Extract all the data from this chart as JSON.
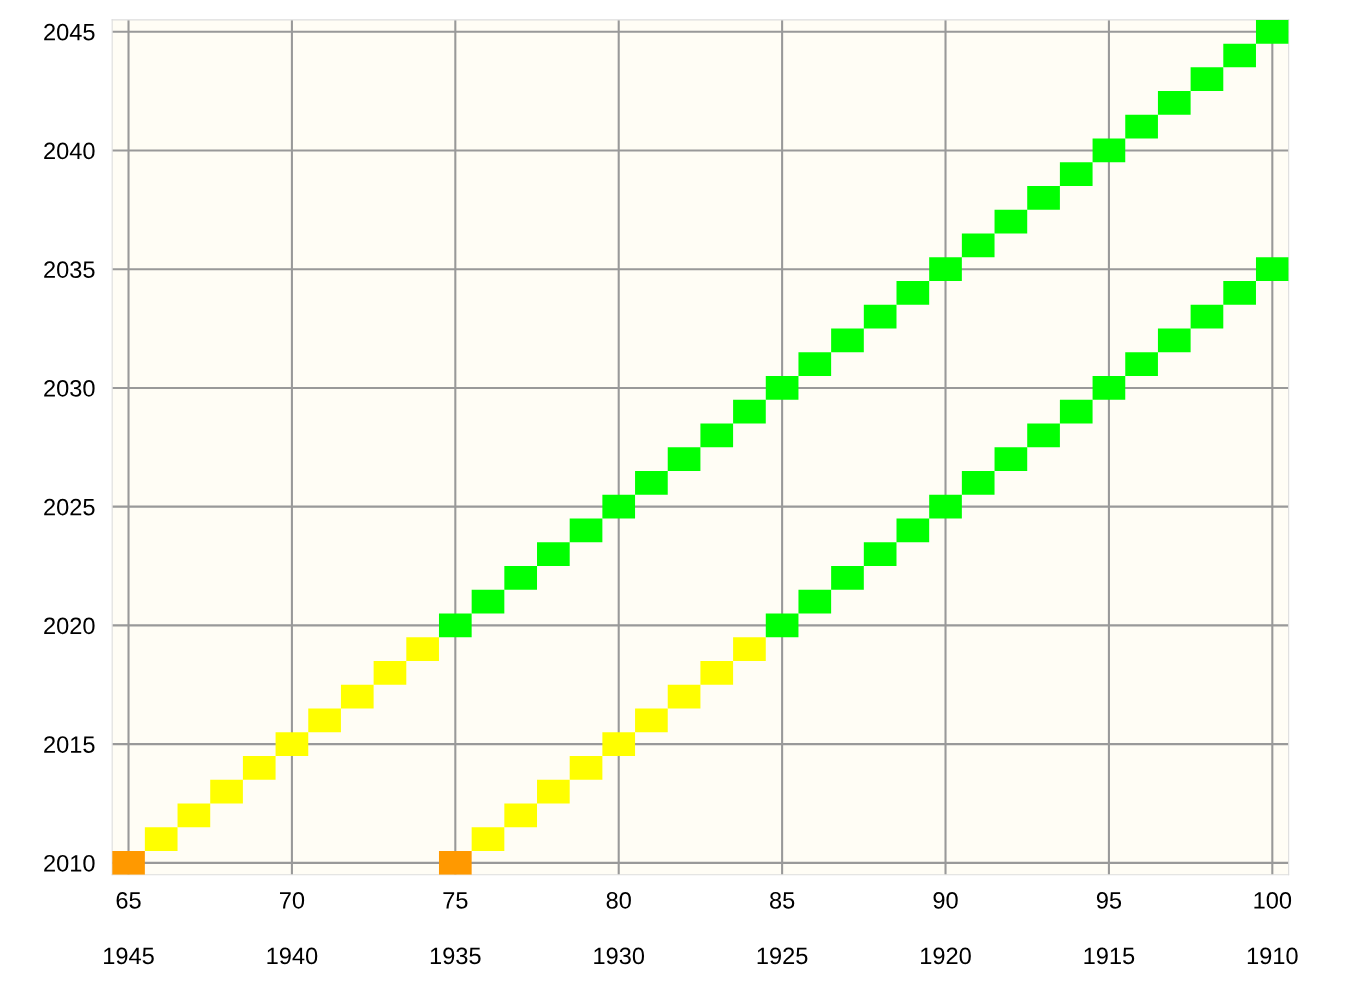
{
  "chart_data": {
    "type": "scatter",
    "grid": true,
    "legend": false,
    "xlim": [
      64.5,
      100.5
    ],
    "xticks": [
      65,
      70,
      75,
      80,
      85,
      90,
      95,
      100
    ],
    "x2lim": [
      1945.5,
      1909.5
    ],
    "x2ticks": [
      1945,
      1940,
      1935,
      1930,
      1925,
      1920,
      1915,
      1910
    ],
    "ylim": [
      2009.5,
      2045.5
    ],
    "yticks": [
      2010,
      2015,
      2020,
      2025,
      2030,
      2035,
      2040,
      2045
    ],
    "series": [
      {
        "color": "#ff9900",
        "x": [
          65,
          75
        ],
        "values": [
          2010,
          2010
        ]
      },
      {
        "color": "#ffff00",
        "x": [
          66,
          67,
          68,
          69,
          70,
          71,
          72,
          73,
          74,
          76,
          77,
          78,
          79,
          80,
          81,
          82,
          83,
          84
        ],
        "values": [
          2011,
          2012,
          2013,
          2014,
          2015,
          2016,
          2017,
          2018,
          2019,
          2011,
          2012,
          2013,
          2014,
          2015,
          2016,
          2017,
          2018,
          2019
        ]
      },
      {
        "color": "#00ff00",
        "x": [
          75,
          76,
          77,
          78,
          79,
          80,
          81,
          82,
          83,
          84,
          85,
          86,
          87,
          88,
          89,
          90,
          91,
          92,
          93,
          94,
          95,
          96,
          97,
          98,
          99,
          100,
          85,
          86,
          87,
          88,
          89,
          90,
          91,
          92,
          93,
          94,
          95,
          96,
          97,
          98,
          99,
          100
        ],
        "values": [
          2020,
          2021,
          2022,
          2023,
          2024,
          2025,
          2026,
          2027,
          2028,
          2029,
          2030,
          2031,
          2032,
          2033,
          2034,
          2035,
          2036,
          2037,
          2038,
          2039,
          2040,
          2041,
          2042,
          2043,
          2044,
          2045,
          2020,
          2021,
          2022,
          2023,
          2024,
          2025,
          2026,
          2027,
          2028,
          2029,
          2030,
          2031,
          2032,
          2033,
          2034,
          2035
        ]
      }
    ]
  }
}
